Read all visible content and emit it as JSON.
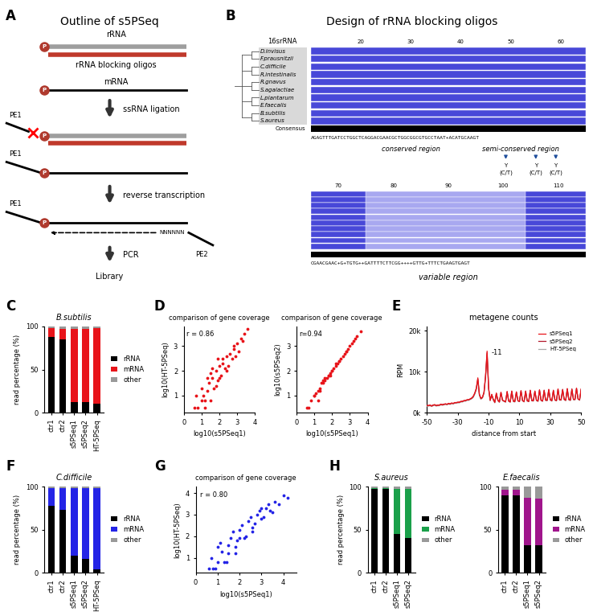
{
  "diagrams": {
    "A": {
      "panel_label": "A",
      "title": "Outline of s5PSeq",
      "labels": {
        "rRNA": "rRNA",
        "blocking": "rRNA blocking oligos",
        "mRNA": "mRNA",
        "step1": "ssRNA ligation",
        "step2": "reverse transcription",
        "step3": "PCR",
        "result": "Library",
        "pe1": "PE1",
        "pe2": "PE2",
        "random": "NNNNNN",
        "phosphate": "P"
      }
    },
    "B": {
      "panel_label": "B",
      "title": "Design of rRNA blocking oligos",
      "header": "16srRNA",
      "species": [
        "D.invisus",
        "F.prausnitzii",
        "C.difficile",
        "R.intestinalis",
        "R.gnavus",
        "S.agalactiae",
        "L.plantarum",
        "E.faecalis",
        "B.subtilis",
        "S.aureus"
      ],
      "positions_top": [
        20,
        30,
        40,
        50,
        60
      ],
      "positions_bottom": [
        70,
        80,
        90,
        100,
        110
      ],
      "consensus_label": "Consensus",
      "consensus_top": "AGAGTTTGATCCTGGCTCAGGACGAACGCTGGCGGCGTGCCTAAT+ACATGCAAGT",
      "consensus_bottom": "CGAACGAAC+G+TGTG++GATTTTCTTCGG++++GTTG+TTTCTGAAGTGAGT",
      "regions": [
        "conserved region",
        "semi-conserved region",
        "variable region"
      ],
      "y_note": [
        "Y",
        "(C/T)"
      ]
    }
  },
  "chart_data": [
    {
      "type": "bar",
      "stacked": true,
      "panel_label": "C",
      "title": "B.subtilis",
      "y_label": "read percentage (%)",
      "categories": [
        "ctr1",
        "ctr2",
        "s5PSeq1",
        "s5PSeq2",
        "HT-5PSeq"
      ],
      "series": [
        {
          "name": "rRNA",
          "color": "#000000",
          "values": [
            88,
            85,
            12,
            12,
            10
          ]
        },
        {
          "name": "mRNA",
          "color": "#e8141a",
          "values": [
            10,
            12,
            85,
            85,
            88
          ]
        },
        {
          "name": "other",
          "color": "#999999",
          "values": [
            2,
            3,
            3,
            3,
            2
          ]
        }
      ],
      "ylim": [
        0,
        100
      ],
      "yticks": [
        0,
        50,
        100
      ],
      "legend": "right"
    },
    {
      "type": "scatter",
      "panel_label": "D",
      "title": "comparison of gene coverage",
      "x_label": "log10(s5PSeq1)",
      "y_label": "log10(HT-5PSeq)",
      "annotations": [
        "r = 0.86"
      ],
      "color": "#e8141a",
      "x": [
        0.6,
        0.8,
        1.0,
        1.1,
        1.2,
        1.3,
        1.4,
        1.5,
        1.6,
        1.7,
        1.8,
        1.9,
        2.0,
        2.1,
        2.2,
        2.3,
        2.4,
        2.5,
        2.6,
        2.7,
        2.8,
        2.9,
        3.0,
        3.1,
        3.2,
        3.4,
        3.6,
        0.7,
        1.0,
        1.3,
        1.5,
        1.8,
        2.0,
        2.2,
        1.2,
        1.6,
        2.4,
        2.8,
        3.3,
        1.9
      ],
      "values": [
        0.5,
        0.5,
        0.8,
        1.0,
        0.5,
        1.2,
        1.5,
        0.8,
        1.7,
        1.3,
        2.0,
        1.6,
        2.2,
        1.8,
        2.3,
        2.1,
        2.6,
        2.2,
        2.7,
        2.5,
        2.9,
        2.6,
        3.1,
        2.8,
        3.3,
        3.5,
        3.7,
        1.0,
        1.3,
        1.7,
        1.9,
        1.4,
        1.7,
        2.5,
        0.8,
        2.1,
        2.0,
        3.0,
        3.2,
        2.5
      ],
      "xlim": [
        0,
        4
      ],
      "xticks": [
        0,
        1,
        2,
        3,
        4
      ],
      "ylim": [
        0.3,
        3.8
      ],
      "yticks": [
        1,
        2,
        3
      ]
    },
    {
      "type": "scatter",
      "title": "comparison of gene coverage",
      "x_label": "log10(s5PSeq1)",
      "y_label": "log10(s5PSeq2)",
      "annotations": [
        "r=0.94"
      ],
      "color": "#e8141a",
      "x": [
        0.6,
        0.8,
        1.0,
        1.1,
        1.2,
        1.3,
        1.4,
        1.5,
        1.6,
        1.7,
        1.8,
        1.9,
        2.0,
        2.1,
        2.2,
        2.3,
        2.4,
        2.5,
        2.6,
        2.7,
        2.8,
        2.9,
        3.0,
        3.1,
        3.2,
        3.4,
        3.6,
        0.7,
        1.0,
        1.3,
        1.5,
        1.8,
        2.0,
        2.2,
        1.2,
        1.6,
        2.4,
        2.8,
        3.3,
        1.9
      ],
      "values": [
        0.5,
        0.8,
        1.0,
        1.1,
        1.2,
        1.3,
        1.5,
        1.5,
        1.6,
        1.7,
        1.8,
        1.9,
        2.0,
        2.1,
        2.2,
        2.3,
        2.4,
        2.5,
        2.6,
        2.7,
        2.8,
        2.9,
        3.0,
        3.1,
        3.2,
        3.4,
        3.6,
        0.5,
        1.0,
        1.2,
        1.6,
        1.8,
        2.0,
        2.3,
        0.8,
        1.7,
        2.4,
        2.8,
        3.3,
        1.8
      ],
      "xlim": [
        0,
        4
      ],
      "xticks": [
        0,
        1,
        2,
        3,
        4
      ],
      "ylim": [
        0.3,
        3.8
      ],
      "yticks": [
        1,
        2,
        3
      ]
    },
    {
      "type": "line",
      "panel_label": "E",
      "title": "metagene counts",
      "x_label": "distance from start",
      "y_label": "RPM",
      "annotations": [
        "-11"
      ],
      "legend": "upper right",
      "x": [
        -50,
        -49,
        -48,
        -47,
        -46,
        -45,
        -44,
        -43,
        -42,
        -41,
        -40,
        -39,
        -38,
        -37,
        -36,
        -35,
        -34,
        -33,
        -32,
        -31,
        -30,
        -29,
        -28,
        -27,
        -26,
        -25,
        -24,
        -23,
        -22,
        -21,
        -20,
        -19,
        -18,
        -17,
        -16,
        -15,
        -14,
        -13,
        -12,
        -11,
        -10,
        -9,
        -8,
        -7,
        -6,
        -5,
        -4,
        -3,
        -2,
        -1,
        0,
        1,
        2,
        3,
        4,
        5,
        6,
        7,
        8,
        9,
        10,
        11,
        12,
        13,
        14,
        15,
        16,
        17,
        18,
        19,
        20,
        21,
        22,
        23,
        24,
        25,
        26,
        27,
        28,
        29,
        30,
        31,
        32,
        33,
        34,
        35,
        36,
        37,
        38,
        39,
        40,
        41,
        42,
        43,
        44,
        45,
        46,
        47,
        48,
        49,
        50
      ],
      "series": [
        {
          "name": "s5PSeq1",
          "color": "#e8141a",
          "values": [
            1800,
            1700,
            1900,
            1600,
            1800,
            2000,
            1700,
            1900,
            1800,
            2100,
            1900,
            2000,
            2200,
            2000,
            2300,
            2100,
            2400,
            2200,
            2500,
            2400,
            2600,
            2500,
            2800,
            2700,
            3000,
            2900,
            3200,
            3100,
            3400,
            3600,
            4000,
            4800,
            6000,
            8500,
            4500,
            3500,
            3800,
            5000,
            9000,
            15000,
            6000,
            3000,
            4500,
            3200,
            2500,
            4800,
            3000,
            2600,
            5000,
            3100,
            2800,
            2700,
            5200,
            2900,
            2600,
            5300,
            2800,
            2700,
            5100,
            2900,
            2800,
            5400,
            3000,
            2700,
            5200,
            2900,
            2800,
            5500,
            3000,
            2900,
            5300,
            3100,
            2800,
            5600,
            3000,
            2900,
            5400,
            3100,
            3000,
            5700,
            3200,
            2900,
            5500,
            3100,
            3000,
            5800,
            3200,
            3100,
            5600,
            3300,
            3000,
            5900,
            3200,
            3100,
            5700,
            3300,
            3200,
            6000,
            3400,
            3100,
            5800
          ]
        },
        {
          "name": "s5PSeq2",
          "color": "#b2182b",
          "values": [
            1700,
            1800,
            1800,
            1700,
            1900,
            1900,
            1800,
            1800,
            1900,
            2000,
            2000,
            2100,
            2100,
            2100,
            2200,
            2200,
            2300,
            2300,
            2400,
            2500,
            2500,
            2600,
            2700,
            2800,
            2900,
            3000,
            3100,
            3200,
            3300,
            3500,
            3900,
            4700,
            5800,
            8200,
            4400,
            3400,
            3700,
            4900,
            8800,
            14600,
            5900,
            3100,
            4400,
            3300,
            2600,
            4700,
            3100,
            2700,
            4900,
            3000,
            2900,
            2600,
            5100,
            2800,
            2700,
            5200,
            2900,
            2800,
            5000,
            3000,
            2700,
            5300,
            2900,
            2800,
            5300,
            3000,
            2700,
            5400,
            2900,
            3000,
            5200,
            3000,
            2900,
            5500,
            3100,
            2800,
            5500,
            3000,
            3100,
            5600,
            3100,
            3000,
            5400,
            3200,
            2900,
            5700,
            3100,
            3200,
            5700,
            3200,
            3100,
            5800,
            3300,
            3000,
            5800,
            3200,
            3300,
            5900,
            3300,
            3200,
            5700
          ]
        },
        {
          "name": "HT-5PSeq",
          "color": "#aaaaaa",
          "values": [
            1600,
            1600,
            1700,
            1500,
            1700,
            1800,
            1600,
            1700,
            1700,
            1900,
            1800,
            1900,
            2000,
            1900,
            2100,
            2000,
            2200,
            2100,
            2300,
            2300,
            2400,
            2400,
            2600,
            2600,
            2800,
            2800,
            3000,
            3000,
            3200,
            3400,
            3700,
            4500,
            5600,
            8000,
            4200,
            3300,
            3600,
            4700,
            8600,
            14200,
            5700,
            2900,
            4300,
            3100,
            2400,
            4600,
            2900,
            2500,
            4800,
            3000,
            2700,
            2600,
            5000,
            2800,
            2500,
            5100,
            2700,
            2600,
            4900,
            2800,
            2700,
            5200,
            2900,
            2600,
            5000,
            2800,
            2700,
            5300,
            2900,
            2800,
            5100,
            3000,
            2700,
            5400,
            2900,
            2800,
            5200,
            3000,
            2900,
            5500,
            3100,
            2800,
            5300,
            3000,
            2900,
            5600,
            3100,
            3000,
            5400,
            3200,
            2900,
            5700,
            3100,
            3000,
            5500,
            3200,
            3100,
            5800,
            3300,
            3000,
            5600
          ]
        }
      ],
      "xlim": [
        -50,
        50
      ],
      "xticks": [
        -50,
        -30,
        -10,
        10,
        30,
        50
      ],
      "ylim": [
        0,
        21000
      ],
      "yticks": [
        {
          "value": 0,
          "label": "0k"
        },
        {
          "value": 10000,
          "label": "10k"
        },
        {
          "value": 20000,
          "label": "20k"
        }
      ]
    },
    {
      "type": "bar",
      "stacked": true,
      "panel_label": "F",
      "title": "C.difficile",
      "y_label": "read percentage (%)",
      "categories": [
        "ctr1",
        "ctr2",
        "s5PSeq1",
        "s5PSeq2",
        "HT-5PSeq"
      ],
      "series": [
        {
          "name": "rRNA",
          "color": "#000000",
          "values": [
            78,
            73,
            20,
            16,
            4
          ]
        },
        {
          "name": "mRNA",
          "color": "#2424e6",
          "values": [
            20,
            25,
            78,
            82,
            94
          ]
        },
        {
          "name": "other",
          "color": "#999999",
          "values": [
            2,
            2,
            2,
            2,
            2
          ]
        }
      ],
      "ylim": [
        0,
        100
      ],
      "yticks": [
        0,
        50,
        100
      ],
      "legend": "right"
    },
    {
      "type": "scatter",
      "panel_label": "G",
      "title": "comparison of gene coverage",
      "x_label": "log10(s5PSeq1)",
      "y_label": "log10(HT-5PSeq)",
      "annotations": [
        "r = 0.80"
      ],
      "color": "#2424e6",
      "x": [
        0.6,
        0.8,
        1.0,
        1.2,
        1.4,
        1.6,
        1.8,
        2.0,
        2.2,
        2.4,
        2.6,
        2.8,
        3.0,
        3.2,
        3.4,
        3.6,
        3.8,
        4.0,
        4.2,
        0.7,
        1.0,
        1.3,
        1.5,
        1.7,
        1.9,
        2.1,
        2.3,
        2.5,
        2.7,
        2.9,
        3.1,
        3.3,
        1.1,
        1.5,
        2.0,
        2.6,
        3.0,
        3.5,
        0.9,
        1.8
      ],
      "values": [
        0.5,
        0.5,
        0.8,
        1.3,
        0.8,
        1.9,
        1.5,
        2.3,
        1.9,
        2.7,
        2.4,
        3.0,
        2.8,
        3.3,
        3.2,
        3.6,
        3.5,
        3.9,
        3.8,
        1.0,
        1.5,
        0.8,
        1.6,
        2.2,
        1.8,
        2.5,
        2.0,
        2.9,
        2.6,
        3.2,
        2.9,
        3.5,
        1.7,
        1.2,
        1.9,
        2.2,
        3.3,
        3.1,
        0.5,
        1.2
      ],
      "xlim": [
        0,
        4.6
      ],
      "xticks": [
        0,
        1,
        2,
        3,
        4
      ],
      "ylim": [
        0.3,
        4.3
      ],
      "yticks": [
        1,
        2,
        3,
        4
      ]
    },
    {
      "type": "bar",
      "stacked": true,
      "panel_label": "H",
      "title": "S.aureus",
      "y_label": "read percentage (%)",
      "categories": [
        "ctr1",
        "ctr2",
        "s5PSeq1",
        "s5PSeq2"
      ],
      "series": [
        {
          "name": "rRNA",
          "color": "#000000",
          "values": [
            97,
            97,
            45,
            40
          ]
        },
        {
          "name": "mRNA",
          "color": "#1aa04a",
          "values": [
            1,
            1,
            52,
            57
          ]
        },
        {
          "name": "other",
          "color": "#999999",
          "values": [
            2,
            2,
            3,
            3
          ]
        }
      ],
      "ylim": [
        0,
        100
      ],
      "yticks": [
        0,
        50,
        100
      ],
      "legend": "right"
    },
    {
      "type": "bar",
      "stacked": true,
      "title": "E.faecalis",
      "categories": [
        "ctr1",
        "ctr2",
        "s5PSeq1",
        "s5PSeq2"
      ],
      "series": [
        {
          "name": "rRNA",
          "color": "#000000",
          "values": [
            90,
            90,
            32,
            32
          ]
        },
        {
          "name": "mRNA",
          "color": "#a0158c",
          "values": [
            6,
            6,
            55,
            54
          ]
        },
        {
          "name": "other",
          "color": "#999999",
          "values": [
            4,
            4,
            13,
            14
          ]
        }
      ],
      "ylim": [
        0,
        100
      ],
      "yticks": [
        0,
        50,
        100
      ],
      "legend": "right"
    }
  ]
}
